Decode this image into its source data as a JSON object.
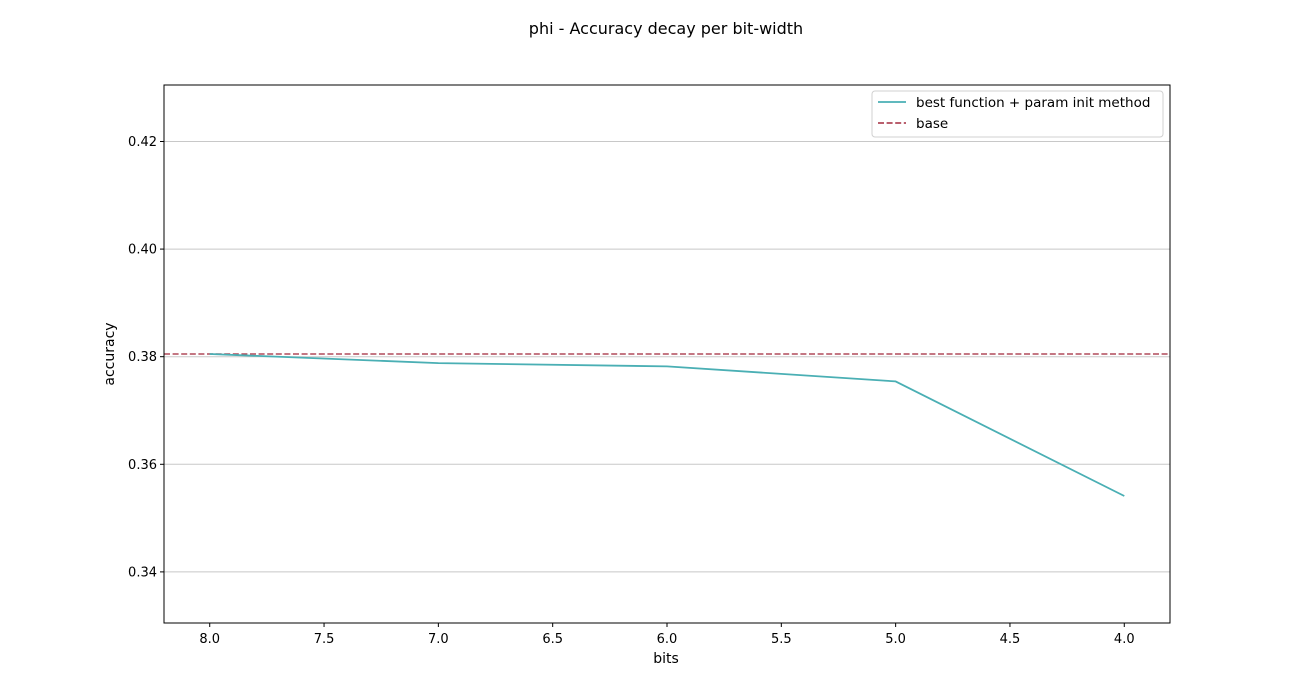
{
  "chart_data": {
    "type": "line",
    "title": "phi - Accuracy decay per bit-width",
    "xlabel": "bits",
    "ylabel": "accuracy",
    "xlim": [
      8.2,
      3.8
    ],
    "ylim": [
      0.3305,
      0.4305
    ],
    "x_inverted": true,
    "xticks": [
      8.0,
      7.5,
      7.0,
      6.5,
      6.0,
      5.5,
      5.0,
      4.5,
      4.0
    ],
    "xtick_labels": [
      "8.0",
      "7.5",
      "7.0",
      "6.5",
      "6.0",
      "5.5",
      "5.0",
      "4.5",
      "4.0"
    ],
    "yticks": [
      0.34,
      0.36,
      0.38,
      0.4,
      0.42
    ],
    "ytick_labels": [
      "0.34",
      "0.36",
      "0.38",
      "0.40",
      "0.42"
    ],
    "grid": "horizontal",
    "legend_position": "top-right",
    "series": [
      {
        "name": "best function + param init method",
        "style": "solid",
        "color": "#4aafb4",
        "x": [
          8,
          7,
          6,
          5,
          4
        ],
        "y": [
          0.3805,
          0.3788,
          0.3782,
          0.3754,
          0.3541
        ]
      }
    ],
    "hlines": [
      {
        "name": "base",
        "style": "dashed",
        "color": "#b04a5a",
        "y": 0.3805
      }
    ]
  }
}
